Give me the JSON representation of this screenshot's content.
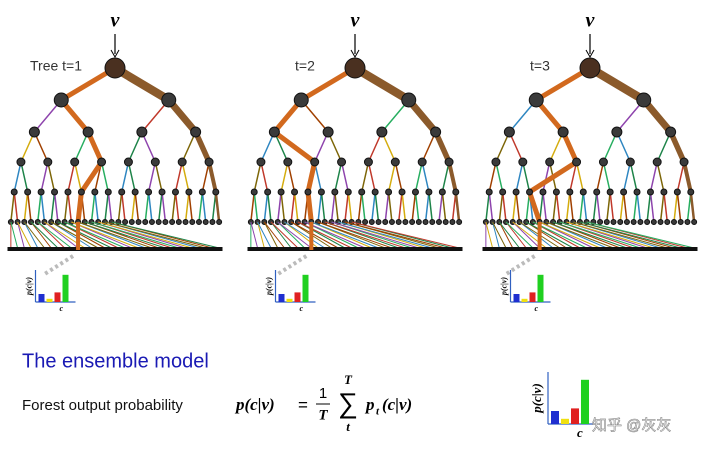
{
  "trees": [
    {
      "input": "v",
      "label": "Tree t=1",
      "hist_y": "p(c|v)",
      "hist_x": "c"
    },
    {
      "input": "v",
      "label": "t=2",
      "hist_y": "p(c|v)",
      "hist_x": "c"
    },
    {
      "input": "v",
      "label": "t=3",
      "hist_y": "p(c|v)",
      "hist_x": "c"
    }
  ],
  "ensemble": {
    "title": "The ensemble model",
    "caption": "Forest output probability",
    "formula": {
      "lhs": "p(c|v)",
      "equals": "=",
      "numerator": "1",
      "denominator": "T",
      "sum": "∑",
      "sum_top": "T",
      "sum_bottom": "t",
      "rhs_p": "p",
      "rhs_sub": "t",
      "rhs_arg": "(c|v)"
    },
    "hist_y": "p(c|v)",
    "hist_x": "c"
  },
  "watermark": "知乎 @灰灰"
}
